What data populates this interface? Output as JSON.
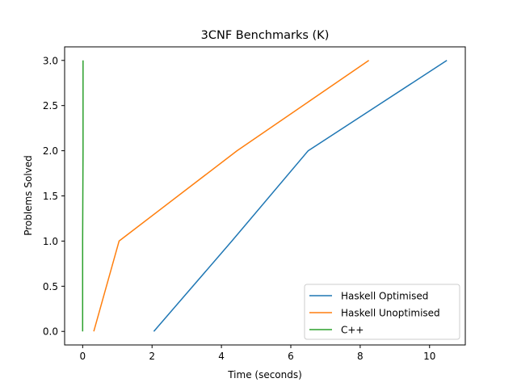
{
  "chart_data": {
    "type": "line",
    "title": "3CNF Benchmarks (K)",
    "xlabel": "Time (seconds)",
    "ylabel": "Problems Solved",
    "xlim": [
      -0.52,
      11.03
    ],
    "ylim": [
      -0.15,
      3.15
    ],
    "xticks": [
      0,
      2,
      4,
      6,
      8,
      10
    ],
    "xtick_labels": [
      "0",
      "2",
      "4",
      "6",
      "8",
      "10"
    ],
    "yticks": [
      0.0,
      0.5,
      1.0,
      1.5,
      2.0,
      2.5,
      3.0
    ],
    "ytick_labels": [
      "0.0",
      "0.5",
      "1.0",
      "1.5",
      "2.0",
      "2.5",
      "3.0"
    ],
    "grid": false,
    "legend_position": "lower right",
    "series": [
      {
        "name": "Haskell Optimised",
        "color": "#1f77b4",
        "x": [
          2.05,
          4.3,
          6.5,
          10.5
        ],
        "y": [
          0,
          1,
          2,
          3
        ]
      },
      {
        "name": "Haskell Unoptimised",
        "color": "#ff7f0e",
        "x": [
          0.32,
          1.05,
          4.45,
          8.25
        ],
        "y": [
          0,
          1,
          2,
          3
        ]
      },
      {
        "name": "C++",
        "color": "#2ca02c",
        "x": [
          0.0,
          0.0,
          0.01,
          0.01
        ],
        "y": [
          0,
          1,
          2,
          3
        ]
      }
    ]
  }
}
